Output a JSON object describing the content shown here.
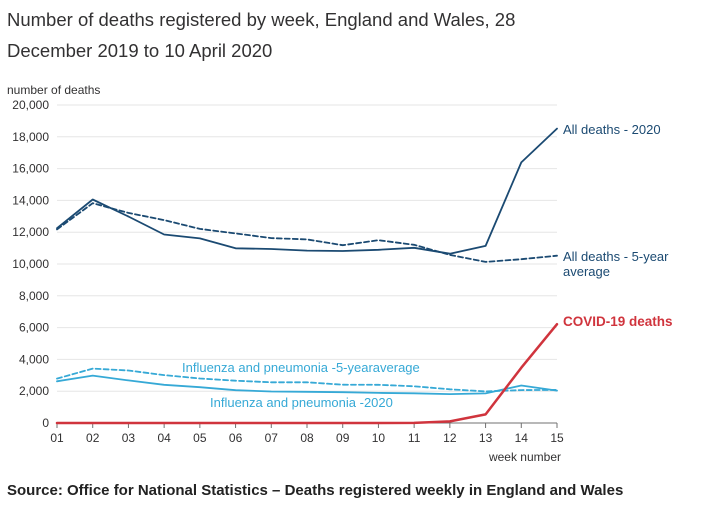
{
  "title": "Number of deaths registered by week, England and Wales, 28 December 2019 to 10 April 2020",
  "source": "Source: Office for National Statistics – Deaths registered weekly in England and Wales",
  "colors": {
    "text": "#323132",
    "axis": "#707070",
    "grid": "#e6e6e6",
    "navy": "#1b4a72",
    "red": "#d0343d",
    "blue": "#36a9d6"
  },
  "chart_data": {
    "type": "line",
    "ylabel": "number of deaths",
    "xlabel": "week number",
    "ylim": [
      0,
      20000
    ],
    "yticks": [
      "0",
      "2,000",
      "4,000",
      "6,000",
      "8,000",
      "10,000",
      "12,000",
      "14,000",
      "16,000",
      "18,000",
      "20,000"
    ],
    "ytick_values": [
      0,
      2000,
      4000,
      6000,
      8000,
      10000,
      12000,
      14000,
      16000,
      18000,
      20000
    ],
    "grid": "horizontal",
    "legend": "direct labels at line ends",
    "x": [
      "01",
      "02",
      "03",
      "04",
      "05",
      "06",
      "07",
      "08",
      "09",
      "10",
      "11",
      "12",
      "13",
      "14",
      "15"
    ],
    "series": [
      {
        "name": "All deaths - 2020",
        "color": "#1b4a72",
        "style": "solid",
        "values": [
          12254,
          14058,
          12990,
          11856,
          11612,
          10986,
          10944,
          10841,
          10816,
          10895,
          11019,
          10645,
          11141,
          16387,
          18516
        ]
      },
      {
        "name": "All deaths - 5-year average",
        "color": "#1b4a72",
        "style": "dashed",
        "values": [
          12175,
          13822,
          13216,
          12760,
          12206,
          11925,
          11627,
          11548,
          11183,
          11498,
          11205,
          10573,
          10130,
          10305,
          10520
        ]
      },
      {
        "name": "COVID-19 deaths",
        "color": "#d0343d",
        "style": "solid",
        "values": [
          0,
          0,
          0,
          0,
          0,
          0,
          0,
          0,
          0,
          0,
          5,
          103,
          539,
          3475,
          6213
        ]
      },
      {
        "name": "Influenza and pneumonia -5-yearaverage",
        "color": "#36a9d6",
        "style": "dashed",
        "values": [
          2790,
          3420,
          3300,
          3010,
          2800,
          2660,
          2560,
          2560,
          2410,
          2400,
          2310,
          2120,
          1990,
          2070,
          2080
        ]
      },
      {
        "name": "Influenza and pneumonia -2020",
        "color": "#36a9d6",
        "style": "solid",
        "values": [
          2620,
          2980,
          2680,
          2400,
          2250,
          2060,
          1980,
          1960,
          1940,
          1890,
          1870,
          1820,
          1860,
          2360,
          2040
        ]
      }
    ],
    "labels": [
      {
        "text": "All deaths - 2020",
        "series": 0
      },
      {
        "text": "All deaths - 5-year",
        "series": 1,
        "line": 0
      },
      {
        "text": "average",
        "series": 1,
        "line": 1
      },
      {
        "text": "COVID-19 deaths",
        "series": 2
      },
      {
        "text": "Influenza and pneumonia -5-yearaverage",
        "series": 3
      },
      {
        "text": "Influenza and pneumonia -2020",
        "series": 4
      }
    ]
  }
}
